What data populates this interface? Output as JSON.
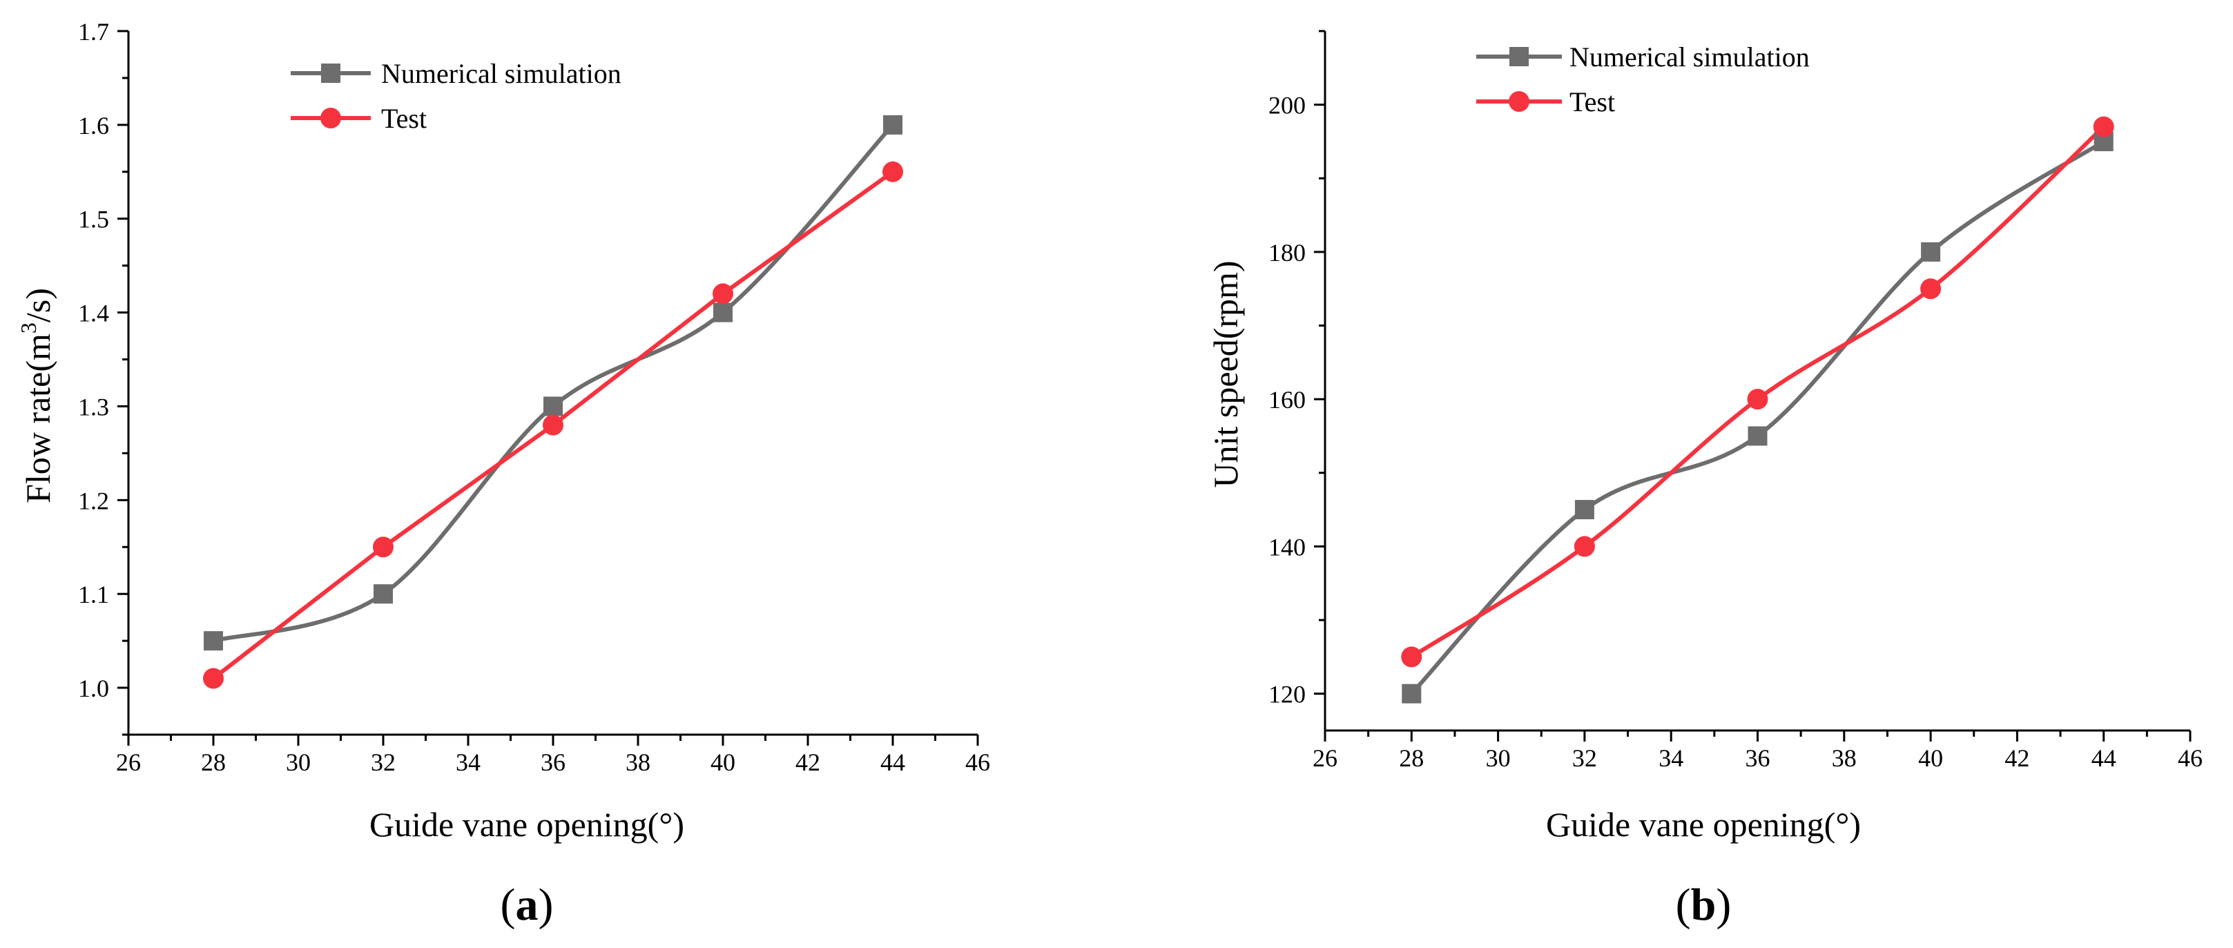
{
  "chart_data": [
    {
      "type": "line",
      "panel_label": "a",
      "title": "",
      "xlabel": "Guide vane opening(°)",
      "ylabel": "Flow rate(m³/s)",
      "ylabel_parts": {
        "prefix": "Flow rate(m",
        "superscript": "3",
        "suffix": "/s)"
      },
      "xlim": [
        26,
        46
      ],
      "ylim": [
        0.95,
        1.7
      ],
      "xticks": [
        26,
        28,
        30,
        32,
        34,
        36,
        38,
        40,
        42,
        44,
        46
      ],
      "xtick_labels": [
        "26",
        "28",
        "30",
        "32",
        "34",
        "36",
        "38",
        "40",
        "42",
        "44",
        "46"
      ],
      "yticks": [
        1.0,
        1.1,
        1.2,
        1.3,
        1.4,
        1.5,
        1.6,
        1.7
      ],
      "ytick_labels": [
        "1.0",
        "1.1",
        "1.2",
        "1.3",
        "1.4",
        "1.5",
        "1.6",
        "1.7"
      ],
      "grid": false,
      "legend_position": "top-center",
      "x": [
        28,
        32,
        36,
        40,
        44
      ],
      "series": [
        {
          "name": "Numerical simulation",
          "values": [
            1.05,
            1.1,
            1.3,
            1.4,
            1.6
          ],
          "color": "#6d6d6d",
          "marker": "square",
          "smooth": true
        },
        {
          "name": "Test",
          "values": [
            1.01,
            1.15,
            1.28,
            1.42,
            1.55
          ],
          "color": "#f5333f",
          "marker": "circle",
          "smooth": false
        }
      ]
    },
    {
      "type": "line",
      "panel_label": "b",
      "title": "",
      "xlabel": "Guide vane opening(°)",
      "ylabel": "Unit speed(rpm)",
      "xlim": [
        26,
        46
      ],
      "ylim": [
        115,
        210
      ],
      "xticks": [
        26,
        28,
        30,
        32,
        34,
        36,
        38,
        40,
        42,
        44,
        46
      ],
      "xtick_labels": [
        "26",
        "28",
        "30",
        "32",
        "34",
        "36",
        "38",
        "40",
        "42",
        "44",
        "46"
      ],
      "yticks": [
        120,
        140,
        160,
        180,
        200
      ],
      "ytick_labels": [
        "120",
        "140",
        "160",
        "180",
        "200"
      ],
      "grid": false,
      "legend_position": "top-left",
      "x": [
        28,
        32,
        36,
        40,
        44
      ],
      "series": [
        {
          "name": "Numerical simulation",
          "values": [
            120,
            145,
            155,
            180,
            195
          ],
          "color": "#6d6d6d",
          "marker": "square",
          "smooth": true
        },
        {
          "name": "Test",
          "values": [
            125,
            140,
            160,
            175,
            197
          ],
          "color": "#f5333f",
          "marker": "circle",
          "smooth": true
        }
      ]
    }
  ]
}
